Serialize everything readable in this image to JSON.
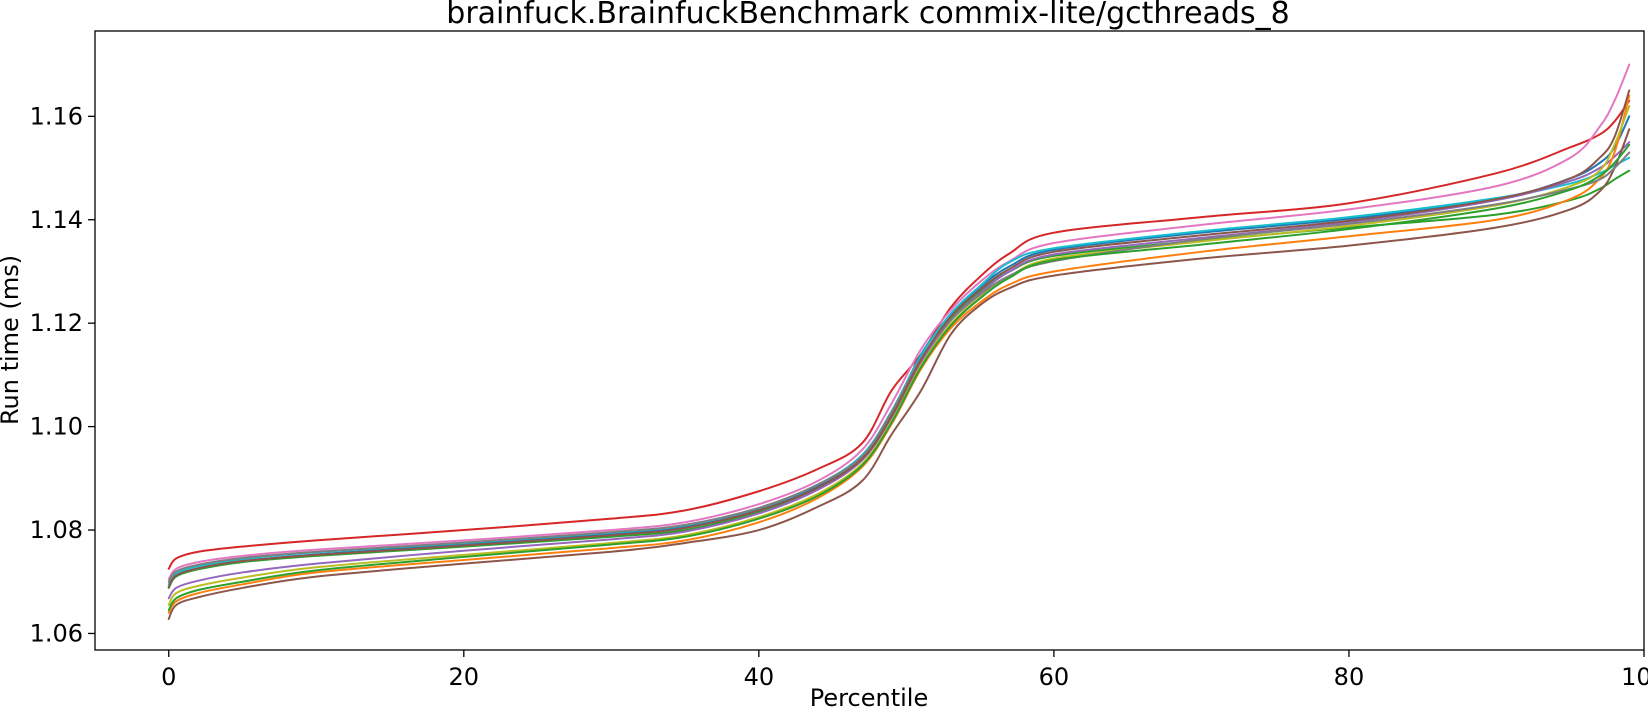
{
  "chart_data": {
    "type": "line",
    "title": "brainfuck.BrainfuckBenchmark commix-lite/gcthreads_8",
    "xlabel": "Percentile",
    "ylabel": "Run time (ms)",
    "xlim": [
      -5,
      100
    ],
    "ylim": [
      1.0568,
      1.1765
    ],
    "xticks": [
      0,
      20,
      40,
      60,
      80,
      100
    ],
    "xtick_labels": [
      "0",
      "20",
      "40",
      "60",
      "80",
      "100"
    ],
    "yticks": [
      1.06,
      1.08,
      1.1,
      1.12,
      1.14,
      1.16
    ],
    "ytick_labels": [
      "1.06",
      "1.08",
      "1.10",
      "1.12",
      "1.14",
      "1.16"
    ],
    "grid": false,
    "x": [
      0,
      0.5,
      2,
      5,
      10,
      20,
      30,
      35,
      40,
      44,
      47,
      49,
      51,
      53,
      55,
      57,
      60,
      70,
      80,
      90,
      95,
      97,
      98,
      99
    ],
    "series": [
      {
        "color": "#d62728",
        "values": [
          1.0725,
          1.0745,
          1.0758,
          1.0768,
          1.078,
          1.08,
          1.0822,
          1.0838,
          1.0875,
          1.0918,
          1.0968,
          1.107,
          1.114,
          1.123,
          1.129,
          1.1335,
          1.1375,
          1.1405,
          1.1432,
          1.149,
          1.154,
          1.1565,
          1.159,
          1.163
        ]
      },
      {
        "color": "#e377c2",
        "values": [
          1.0705,
          1.0725,
          1.0738,
          1.075,
          1.0762,
          1.078,
          1.08,
          1.0815,
          1.085,
          1.0895,
          1.0955,
          1.1045,
          1.115,
          1.1225,
          1.128,
          1.132,
          1.1355,
          1.139,
          1.142,
          1.1465,
          1.152,
          1.158,
          1.163,
          1.17
        ]
      },
      {
        "color": "#1f77b4",
        "values": [
          1.069,
          1.0712,
          1.0726,
          1.074,
          1.0753,
          1.0772,
          1.0792,
          1.0806,
          1.084,
          1.0885,
          1.094,
          1.1025,
          1.114,
          1.1215,
          1.127,
          1.131,
          1.1342,
          1.1375,
          1.1402,
          1.144,
          1.148,
          1.151,
          1.154,
          1.16
        ]
      },
      {
        "color": "#2ca02c",
        "values": [
          1.0688,
          1.071,
          1.0724,
          1.0738,
          1.075,
          1.0768,
          1.0787,
          1.08,
          1.0835,
          1.088,
          1.0935,
          1.102,
          1.113,
          1.121,
          1.1262,
          1.13,
          1.133,
          1.136,
          1.1385,
          1.141,
          1.1438,
          1.146,
          1.1478,
          1.1495
        ]
      },
      {
        "color": "#17becf",
        "values": [
          1.0695,
          1.0716,
          1.073,
          1.0744,
          1.0757,
          1.0775,
          1.0795,
          1.0809,
          1.0842,
          1.0888,
          1.0945,
          1.103,
          1.1138,
          1.1218,
          1.1272,
          1.1318,
          1.1345,
          1.1378,
          1.1405,
          1.1442,
          1.147,
          1.149,
          1.1505,
          1.152
        ]
      },
      {
        "color": "#9467bd",
        "values": [
          1.0668,
          1.0688,
          1.0702,
          1.0718,
          1.0735,
          1.076,
          1.0782,
          1.0797,
          1.0832,
          1.0878,
          1.0935,
          1.1018,
          1.1125,
          1.1205,
          1.1258,
          1.13,
          1.1333,
          1.1365,
          1.1395,
          1.1438,
          1.1475,
          1.15,
          1.1522,
          1.155
        ]
      },
      {
        "color": "#8c564b",
        "values": [
          1.0628,
          1.0655,
          1.067,
          1.0688,
          1.071,
          1.0735,
          1.0758,
          1.0775,
          1.08,
          1.0845,
          1.0895,
          1.0985,
          1.107,
          1.1178,
          1.1235,
          1.1268,
          1.1292,
          1.1325,
          1.135,
          1.1385,
          1.142,
          1.1455,
          1.15,
          1.1575
        ]
      },
      {
        "color": "#ff7f0e",
        "values": [
          1.064,
          1.0662,
          1.0678,
          1.0695,
          1.0718,
          1.0742,
          1.0765,
          1.078,
          1.0815,
          1.0862,
          1.0922,
          1.1005,
          1.1112,
          1.119,
          1.124,
          1.1275,
          1.13,
          1.1338,
          1.1368,
          1.14,
          1.144,
          1.148,
          1.153,
          1.164
        ]
      },
      {
        "color": "#bcbd22",
        "values": [
          1.0655,
          1.0678,
          1.0692,
          1.0708,
          1.0728,
          1.0752,
          1.0775,
          1.079,
          1.0825,
          1.087,
          1.0928,
          1.101,
          1.1118,
          1.1198,
          1.125,
          1.129,
          1.1325,
          1.1358,
          1.1388,
          1.1428,
          1.1465,
          1.1495,
          1.1545,
          1.162
        ]
      },
      {
        "color": "#7f7f7f",
        "values": [
          1.07,
          1.072,
          1.0733,
          1.0746,
          1.0758,
          1.0776,
          1.0796,
          1.081,
          1.0843,
          1.0888,
          1.0942,
          1.1028,
          1.1132,
          1.1205,
          1.1255,
          1.1292,
          1.132,
          1.1362,
          1.1392,
          1.143,
          1.146,
          1.1478,
          1.15,
          1.153
        ]
      },
      {
        "color": "#8c564b",
        "values": [
          1.069,
          1.0712,
          1.0726,
          1.074,
          1.0752,
          1.077,
          1.079,
          1.0804,
          1.0838,
          1.0882,
          1.0938,
          1.102,
          1.113,
          1.1212,
          1.1265,
          1.1305,
          1.1338,
          1.137,
          1.1398,
          1.144,
          1.148,
          1.152,
          1.156,
          1.165
        ]
      },
      {
        "color": "#2ca02c",
        "values": [
          1.0645,
          1.0668,
          1.0684,
          1.07,
          1.0722,
          1.0748,
          1.0772,
          1.0787,
          1.0822,
          1.0866,
          1.0925,
          1.1008,
          1.1115,
          1.1195,
          1.1248,
          1.1288,
          1.1322,
          1.1352,
          1.1382,
          1.1422,
          1.1458,
          1.1485,
          1.151,
          1.1545
        ]
      }
    ]
  }
}
